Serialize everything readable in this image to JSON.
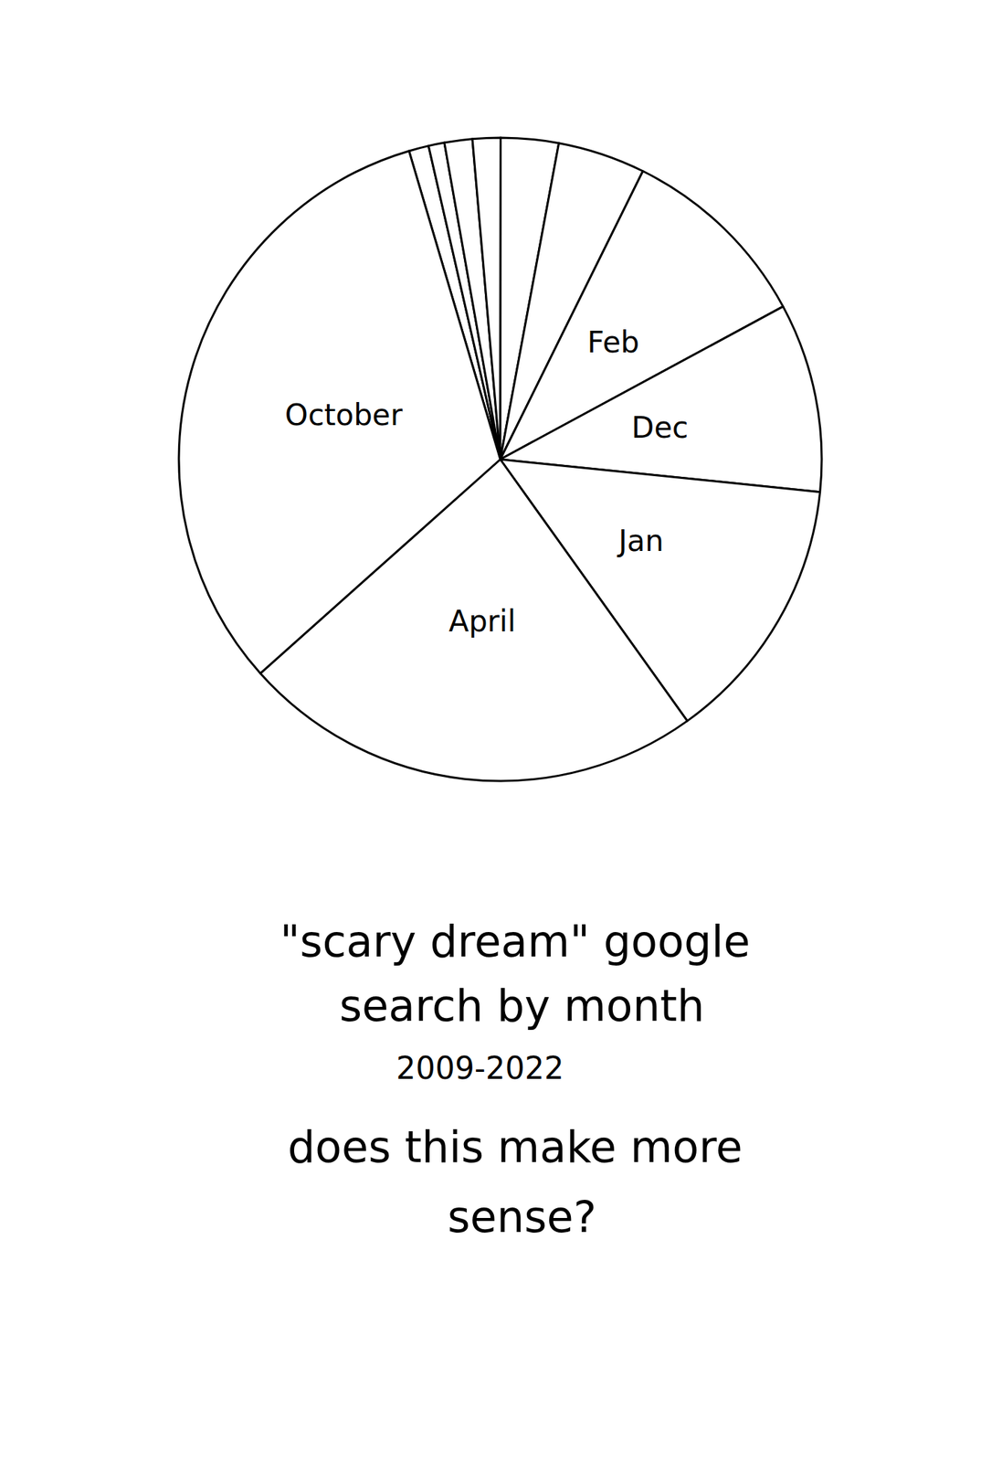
{
  "chart_data": {
    "type": "pie",
    "title": "\"scary dream\" google search by month",
    "subtitle": "2009-2022",
    "annotation": "does this make more sense?",
    "categories": [
      null,
      null,
      null,
      null,
      null,
      null,
      "Feb",
      "Dec",
      "Jan",
      "April",
      "October"
    ],
    "values": [
      1.0,
      0.8,
      1.4,
      1.4,
      2.9,
      4.4,
      9.8,
      9.5,
      13.5,
      23.3,
      32.0
    ],
    "color": "#ffffff"
  }
}
